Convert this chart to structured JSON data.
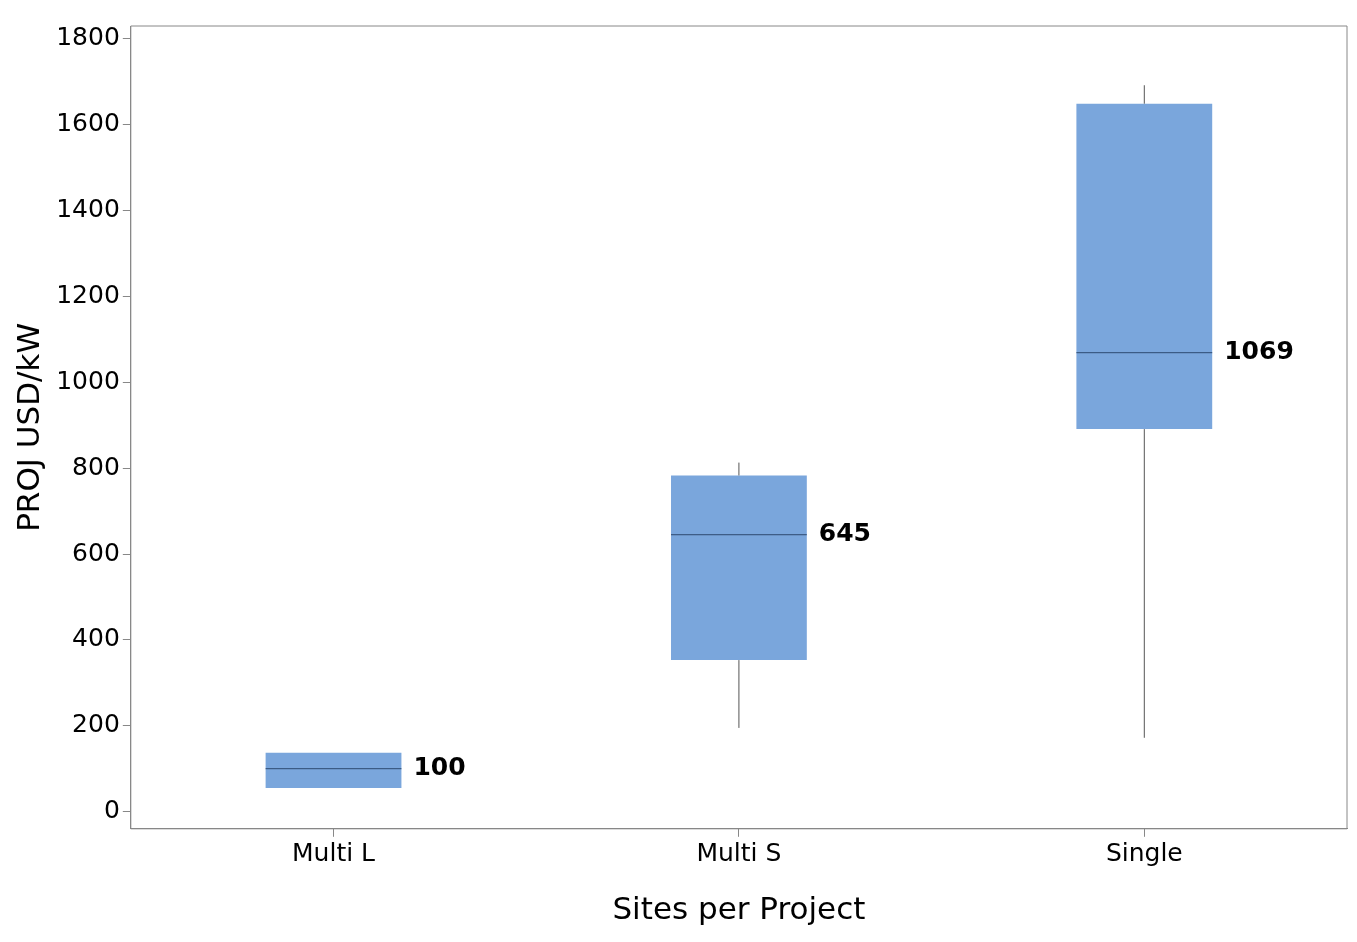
{
  "chart_data": {
    "type": "box",
    "xlabel": "Sites per Project",
    "ylabel": "PROJ USD/kW",
    "categories": [
      "Multi L",
      "Multi S",
      "Single"
    ],
    "color": "#7aa6dc",
    "boxes": [
      {
        "low": 55,
        "q1": 55,
        "median": 100,
        "q3": 137,
        "high": 137
      },
      {
        "low": 195,
        "q1": 353,
        "median": 645,
        "q3": 783,
        "high": 813
      },
      {
        "low": 172,
        "q1": 891,
        "median": 1069,
        "q3": 1649,
        "high": 1692
      }
    ],
    "ylim": [
      -40,
      1830
    ],
    "yticks": [
      0,
      200,
      400,
      600,
      800,
      1000,
      1200,
      1400,
      1600,
      1800
    ],
    "grid": false,
    "legend": false,
    "annotations": [
      "100",
      "645",
      "1069"
    ]
  }
}
